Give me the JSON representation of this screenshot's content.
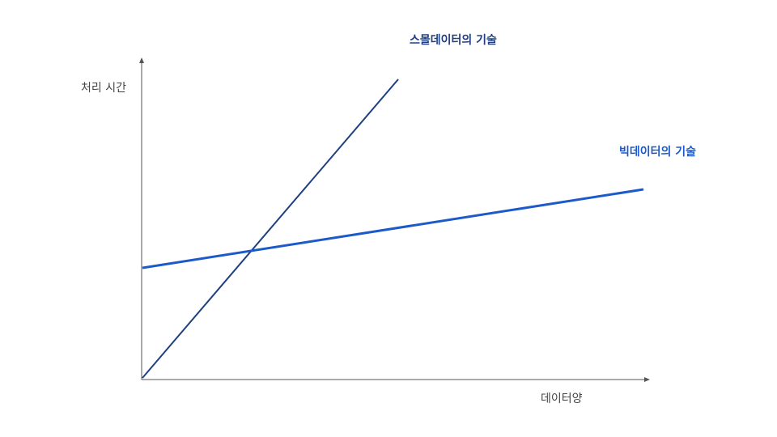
{
  "axes": {
    "y_label": "처리 시간",
    "x_label": "데이터양",
    "axis_color": "#555555"
  },
  "lines": [
    {
      "id": "small-data",
      "label": "스몰데이터의 기술",
      "color": "#1f3f80"
    },
    {
      "id": "big-data",
      "label": "빅데이터의 기술",
      "color": "#1d5ac9"
    }
  ]
}
